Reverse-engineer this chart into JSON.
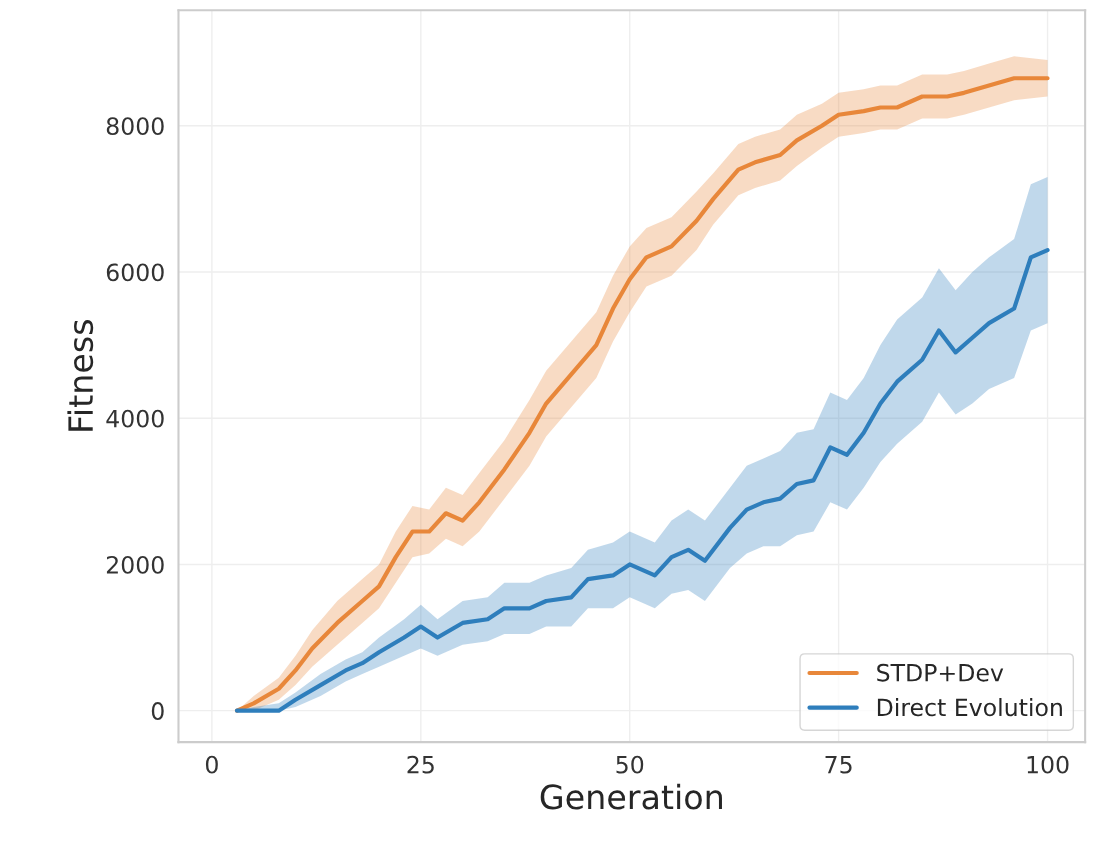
{
  "chart_data": {
    "type": "line",
    "xlabel": "Generation",
    "ylabel": "Fitness",
    "xlim": [
      -4,
      104.5
    ],
    "ylim": [
      -430,
      9580
    ],
    "xticks": [
      0,
      25,
      50,
      75,
      100
    ],
    "yticks": [
      0,
      2000,
      4000,
      6000,
      8000
    ],
    "grid": true,
    "legend": "bottom right",
    "marker": "none",
    "line_style": "solid",
    "series": [
      {
        "name": "STDP+Dev",
        "color": "#e8873a",
        "x": [
          3,
          5,
          8,
          10,
          12,
          15,
          18,
          20,
          22,
          24,
          26,
          28,
          30,
          32,
          35,
          38,
          40,
          43,
          46,
          48,
          50,
          52,
          55,
          58,
          60,
          63,
          65,
          68,
          70,
          73,
          75,
          78,
          80,
          82,
          85,
          88,
          90,
          93,
          96,
          100
        ],
        "values": [
          0,
          100,
          300,
          550,
          850,
          1200,
          1500,
          1700,
          2100,
          2450,
          2450,
          2700,
          2600,
          2850,
          3300,
          3800,
          4200,
          4600,
          5000,
          5500,
          5900,
          6200,
          6350,
          6700,
          7000,
          7400,
          7500,
          7600,
          7800,
          8000,
          8150,
          8200,
          8250,
          8250,
          8400,
          8400,
          8450,
          8550,
          8650,
          8650
        ],
        "lower": [
          0,
          0,
          150,
          350,
          600,
          900,
          1200,
          1400,
          1750,
          2100,
          2150,
          2350,
          2250,
          2450,
          2900,
          3350,
          3750,
          4150,
          4550,
          5050,
          5450,
          5800,
          5950,
          6300,
          6650,
          7050,
          7150,
          7250,
          7450,
          7700,
          7850,
          7900,
          7950,
          7950,
          8100,
          8100,
          8150,
          8250,
          8350,
          8400
        ],
        "upper": [
          0,
          200,
          450,
          750,
          1100,
          1500,
          1800,
          2000,
          2450,
          2800,
          2750,
          3050,
          2950,
          3250,
          3700,
          4250,
          4650,
          5050,
          5450,
          5950,
          6350,
          6600,
          6750,
          7100,
          7350,
          7750,
          7850,
          7950,
          8150,
          8300,
          8450,
          8500,
          8550,
          8550,
          8700,
          8700,
          8750,
          8850,
          8950,
          8900
        ]
      },
      {
        "name": "Direct Evolution",
        "color": "#2e7ebc",
        "x": [
          3,
          5,
          8,
          10,
          13,
          16,
          18,
          20,
          23,
          25,
          27,
          30,
          33,
          35,
          38,
          40,
          43,
          45,
          48,
          50,
          53,
          55,
          57,
          59,
          62,
          64,
          66,
          68,
          70,
          72,
          74,
          76,
          78,
          80,
          82,
          85,
          87,
          89,
          91,
          93,
          96,
          98,
          100
        ],
        "values": [
          0,
          0,
          0,
          150,
          350,
          550,
          650,
          800,
          1000,
          1150,
          1000,
          1200,
          1250,
          1400,
          1400,
          1500,
          1550,
          1800,
          1850,
          2000,
          1850,
          2100,
          2200,
          2050,
          2500,
          2750,
          2850,
          2900,
          3100,
          3150,
          3600,
          3500,
          3800,
          4200,
          4500,
          4800,
          5200,
          4900,
          5100,
          5300,
          5500,
          6200,
          6300
        ],
        "lower": [
          0,
          0,
          0,
          50,
          200,
          400,
          500,
          600,
          750,
          850,
          750,
          900,
          950,
          1050,
          1050,
          1150,
          1150,
          1400,
          1400,
          1550,
          1400,
          1600,
          1650,
          1500,
          1950,
          2150,
          2250,
          2250,
          2400,
          2450,
          2850,
          2750,
          3050,
          3400,
          3650,
          3950,
          4350,
          4050,
          4200,
          4400,
          4550,
          5200,
          5300
        ],
        "upper": [
          0,
          50,
          100,
          250,
          500,
          700,
          800,
          1000,
          1250,
          1450,
          1250,
          1500,
          1550,
          1750,
          1750,
          1850,
          1950,
          2200,
          2300,
          2450,
          2300,
          2600,
          2750,
          2600,
          3050,
          3350,
          3450,
          3550,
          3800,
          3850,
          4350,
          4250,
          4550,
          5000,
          5350,
          5650,
          6050,
          5750,
          6000,
          6200,
          6450,
          7200,
          7300
        ]
      }
    ]
  }
}
